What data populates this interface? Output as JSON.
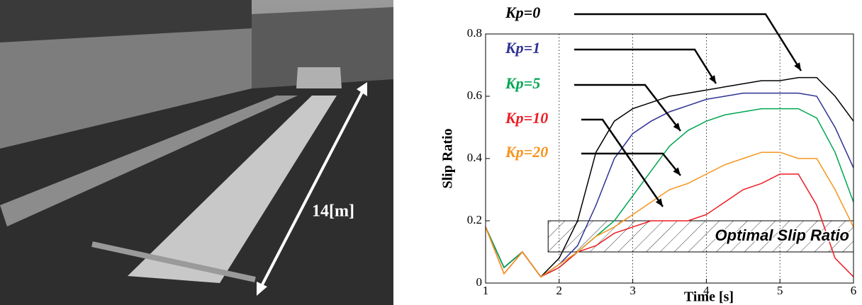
{
  "photo": {
    "label": "14[m]"
  },
  "chart_data": {
    "type": "line",
    "x_label": "Time [s]",
    "y_label": "Slip Ratio",
    "x": [
      1,
      1.25,
      1.5,
      1.75,
      2,
      2.25,
      2.5,
      2.75,
      3,
      3.25,
      3.5,
      3.75,
      4,
      4.25,
      4.5,
      4.75,
      5,
      5.25,
      5.5,
      5.75,
      6
    ],
    "series": [
      {
        "name": "Kp=0",
        "color": "#000000",
        "values": [
          0.18,
          0.05,
          0.1,
          0.02,
          0.08,
          0.2,
          0.42,
          0.52,
          0.56,
          0.58,
          0.6,
          0.61,
          0.62,
          0.63,
          0.64,
          0.65,
          0.65,
          0.66,
          0.66,
          0.6,
          0.52
        ]
      },
      {
        "name": "Kp=1",
        "color": "#2e3192",
        "values": [
          0.18,
          0.05,
          0.1,
          0.02,
          0.06,
          0.12,
          0.25,
          0.4,
          0.48,
          0.52,
          0.55,
          0.57,
          0.59,
          0.6,
          0.61,
          0.61,
          0.61,
          0.61,
          0.6,
          0.5,
          0.37
        ]
      },
      {
        "name": "Kp=5",
        "color": "#00a651",
        "values": [
          0.18,
          0.05,
          0.1,
          0.02,
          0.05,
          0.1,
          0.15,
          0.2,
          0.28,
          0.36,
          0.44,
          0.49,
          0.52,
          0.54,
          0.55,
          0.56,
          0.56,
          0.56,
          0.53,
          0.42,
          0.26
        ]
      },
      {
        "name": "Kp=10",
        "color": "#ed1c24",
        "values": [
          0.18,
          0.03,
          0.1,
          0.02,
          0.05,
          0.1,
          0.12,
          0.16,
          0.18,
          0.2,
          0.2,
          0.2,
          0.22,
          0.26,
          0.3,
          0.32,
          0.35,
          0.35,
          0.25,
          0.08,
          0.02
        ]
      },
      {
        "name": "Kp=20",
        "color": "#f7941d",
        "values": [
          0.18,
          0.03,
          0.1,
          0.02,
          0.06,
          0.1,
          0.15,
          0.18,
          0.22,
          0.26,
          0.3,
          0.32,
          0.35,
          0.38,
          0.4,
          0.42,
          0.42,
          0.4,
          0.4,
          0.3,
          0.18
        ]
      }
    ],
    "xlim": [
      1,
      6
    ],
    "xticks": [
      1,
      2,
      3,
      4,
      5,
      6
    ],
    "ylim": [
      0,
      0.8
    ],
    "yticks": [
      0,
      0.2,
      0.4,
      0.6,
      0.8
    ],
    "grid": "x",
    "band": {
      "label": "Optimal Slip Ratio",
      "xlim": [
        1.85,
        6
      ],
      "ylim": [
        0.1,
        0.2
      ]
    }
  }
}
